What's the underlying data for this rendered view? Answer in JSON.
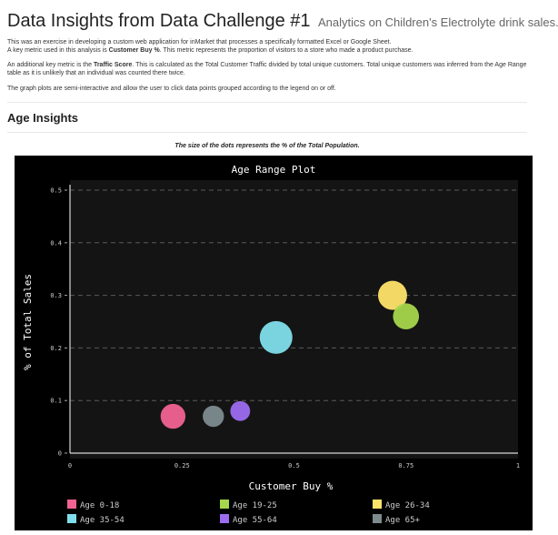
{
  "header": {
    "title": "Data Insights from Data Challenge #1",
    "subtitle": "Analytics on Children's Electrolyte drink sales."
  },
  "intro": {
    "p1_line1": "This was an exercise in developing a custom web application for inMarket that processes a specifically formatted Excel or Google Sheet.",
    "p1_line2_pre": "A key metric used in this analysis is ",
    "p1_line2_bold": "Customer Buy %",
    "p1_line2_post": ". This metric represents the proportion of visitors to a store who made a product purchase.",
    "p2_pre": "An additional key metric is the ",
    "p2_bold": "Traffic Score",
    "p2_post": ". This is calculated as the Total Customer Traffic divided by total unique customers. Total unique customers was inferred from the Age Range table as it is unlikely that an individual was counted there twice.",
    "p3": "The graph plots are semi-interactive and allow the user to click data points grouped according to the legend on or off."
  },
  "section": {
    "heading": "Age Insights"
  },
  "chart_note": "The size of the dots represents the % of the Total Population.",
  "chart_data": {
    "type": "scatter",
    "title": "Age Range Plot",
    "xlabel": "Customer Buy %",
    "ylabel": "% of Total Sales",
    "xlim": [
      0,
      1
    ],
    "ylim": [
      0,
      0.5
    ],
    "xticks": [
      "0",
      "0.25",
      "0.5",
      "0.75",
      "1"
    ],
    "yticks": [
      "0",
      "0.1",
      "0.2",
      "0.3",
      "0.4",
      "0.5"
    ],
    "grid": true,
    "legend_position": "bottom",
    "series": [
      {
        "name": "Age 0-18",
        "color": "#f06292",
        "x": 0.23,
        "y": 0.07,
        "size": 0.11
      },
      {
        "name": "Age 19-25",
        "color": "#a5d64c",
        "x": 0.75,
        "y": 0.26,
        "size": 0.12
      },
      {
        "name": "Age 26-34",
        "color": "#ffe36a",
        "x": 0.72,
        "y": 0.3,
        "size": 0.15
      },
      {
        "name": "Age 35-54",
        "color": "#80deea",
        "x": 0.46,
        "y": 0.22,
        "size": 0.19
      },
      {
        "name": "Age 55-64",
        "color": "#9c6cf0",
        "x": 0.38,
        "y": 0.08,
        "size": 0.07
      },
      {
        "name": "Age 65+",
        "color": "#7d8b8f",
        "x": 0.32,
        "y": 0.07,
        "size": 0.08
      }
    ]
  }
}
